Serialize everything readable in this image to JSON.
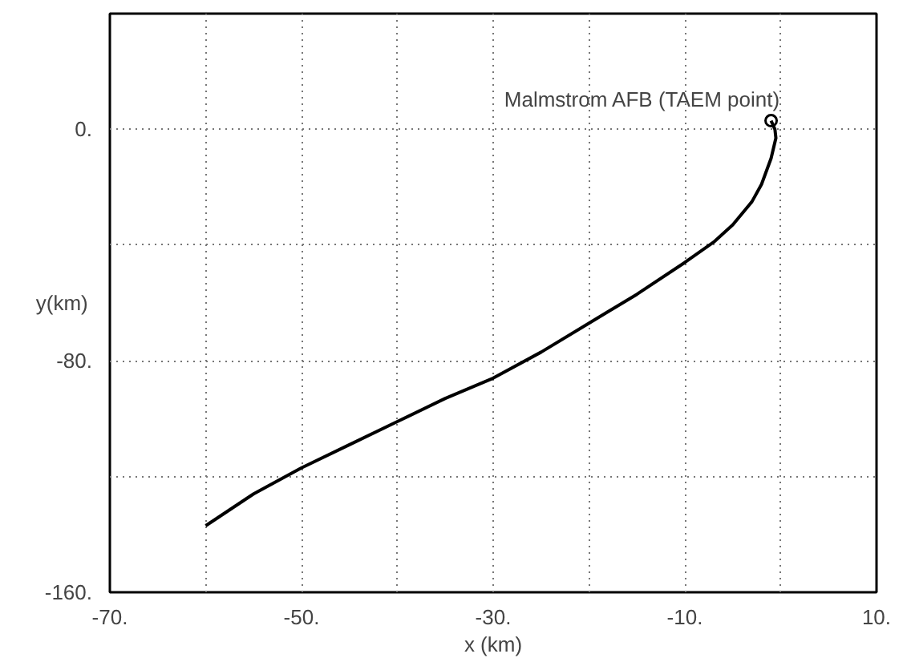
{
  "chart_data": {
    "type": "line",
    "xlabel": "x (km)",
    "ylabel": "y(km)",
    "x": [
      -60,
      -55,
      -50,
      -45,
      -40,
      -35,
      -30,
      -25,
      -20,
      -15,
      -10,
      -7,
      -5,
      -3,
      -2,
      -1,
      -0.5,
      -0.6,
      -1
    ],
    "series": [
      {
        "color": "#000000",
        "values": [
          -137,
          -126,
          -117,
          -109,
          -101,
          -93,
          -86,
          -77,
          -67,
          -57,
          -46,
          -39,
          -33,
          -25,
          -19,
          -10,
          -3,
          0,
          3
        ]
      },
      {
        "type": "scatter",
        "marker": "circle",
        "color": "#000000",
        "x": [
          -1
        ],
        "values": [
          3
        ]
      }
    ],
    "xlim": [
      -70,
      10
    ],
    "ylim": [
      -160,
      40
    ],
    "xticks": [
      {
        "value": -70,
        "label": "-70."
      },
      {
        "value": -60,
        "label": null
      },
      {
        "value": -50,
        "label": "-50."
      },
      {
        "value": -40,
        "label": null
      },
      {
        "value": -30,
        "label": "-30."
      },
      {
        "value": -20,
        "label": null
      },
      {
        "value": -10,
        "label": "-10."
      },
      {
        "value": 0,
        "label": null
      },
      {
        "value": 10,
        "label": "10."
      }
    ],
    "yticks": [
      {
        "value": -160,
        "label": "-160."
      },
      {
        "value": -120,
        "label": null
      },
      {
        "value": -80,
        "label": "-80."
      },
      {
        "value": -40,
        "label": null
      },
      {
        "value": 0,
        "label": "0."
      },
      {
        "value": 40,
        "label": null
      }
    ],
    "grid": true,
    "marker": "none",
    "line_style": "solid",
    "annotations": [
      {
        "text": "Malmstrom AFB (TAEM point)",
        "x": -1,
        "y": 3
      }
    ]
  }
}
